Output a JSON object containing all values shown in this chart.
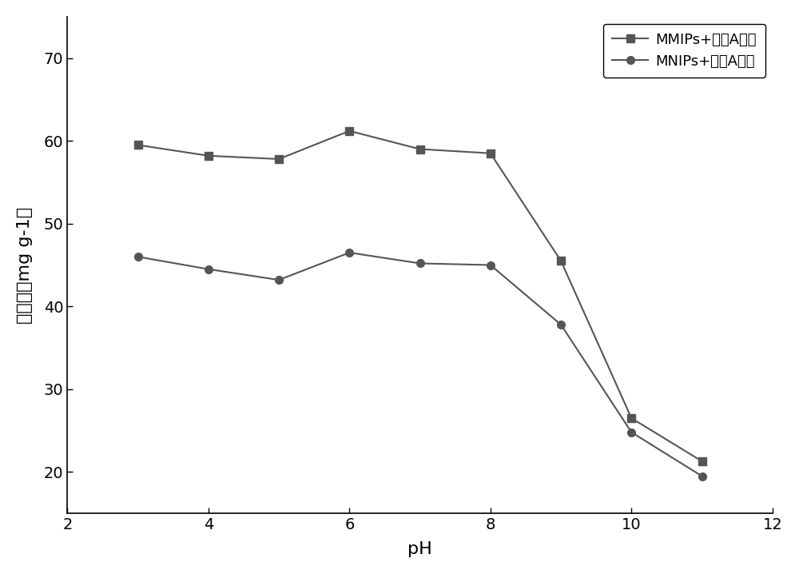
{
  "mmips_x": [
    3,
    4,
    5,
    6,
    7,
    8,
    9,
    10,
    11
  ],
  "mmips_y": [
    59.5,
    58.2,
    57.8,
    61.2,
    59.0,
    58.5,
    45.5,
    26.5,
    21.3
  ],
  "mnips_x": [
    3,
    4,
    5,
    6,
    7,
    8,
    9,
    10,
    11
  ],
  "mnips_y": [
    46.0,
    44.5,
    43.2,
    46.5,
    45.2,
    45.0,
    37.8,
    24.8,
    19.5
  ],
  "mmips_label": "MMIPs+双酚A溶液",
  "mnips_label": "MNIPs+双酚A溶液",
  "xlabel": "pH",
  "ylabel_line1": "吸附量（mg g",
  "ylabel_sup": "-1",
  "ylabel_line2": "）",
  "xlim": [
    2,
    12
  ],
  "ylim": [
    15,
    75
  ],
  "yticks": [
    20,
    30,
    40,
    50,
    60,
    70
  ],
  "xticks": [
    2,
    4,
    6,
    8,
    10,
    12
  ],
  "line_color": "#555555",
  "marker_square": "s",
  "marker_circle": "o",
  "markersize": 7,
  "linewidth": 1.5,
  "bg_color": "#ffffff",
  "legend_loc": "upper right"
}
